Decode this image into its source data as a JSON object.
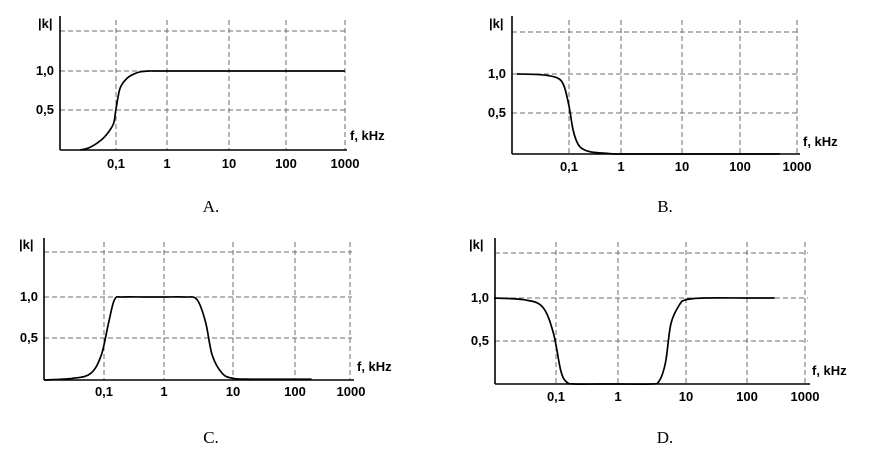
{
  "chart_data": [
    {
      "type": "line",
      "panel_caption": "A.",
      "xlabel": "f, kHz",
      "ylabel": "|k|",
      "x_scale": "log",
      "x_ticks": [
        "0,1",
        "1",
        "10",
        "100",
        "1000"
      ],
      "y_ticks": [
        "0,5",
        "1,0"
      ],
      "xlim": [
        0.01,
        1000
      ],
      "ylim": [
        0,
        1.25
      ],
      "grid": true,
      "series": [
        {
          "x": [
            0.02,
            0.03,
            0.05,
            0.07,
            0.09,
            0.1,
            0.12,
            0.16,
            0.22,
            0.3,
            0.45,
            0.6,
            1,
            10,
            100,
            1000
          ],
          "y": [
            0.0,
            0.03,
            0.12,
            0.22,
            0.34,
            0.52,
            0.78,
            0.9,
            0.96,
            0.99,
            1.0,
            1.0,
            1.0,
            1.0,
            1.0,
            1.0
          ]
        }
      ]
    },
    {
      "type": "line",
      "panel_caption": "B.",
      "xlabel": "f, kHz",
      "ylabel": "|k|",
      "x_scale": "log",
      "x_ticks": [
        "0,1",
        "1",
        "10",
        "100",
        "1000"
      ],
      "y_ticks": [
        "0,5",
        "1,0"
      ],
      "xlim": [
        0.01,
        1000
      ],
      "ylim": [
        0,
        1.25
      ],
      "grid": true,
      "series": [
        {
          "x": [
            0.01,
            0.03,
            0.06,
            0.08,
            0.1,
            0.12,
            0.15,
            0.2,
            0.3,
            0.5,
            1,
            10,
            100,
            500
          ],
          "y": [
            1.0,
            0.99,
            0.95,
            0.85,
            0.6,
            0.3,
            0.12,
            0.05,
            0.02,
            0.01,
            0.0,
            0.0,
            0.0,
            0.0
          ]
        }
      ]
    },
    {
      "type": "line",
      "panel_caption": "C.",
      "xlabel": "f, kHz",
      "ylabel": "|k|",
      "x_scale": "log",
      "x_ticks": [
        "0,1",
        "1",
        "10",
        "100",
        "1000"
      ],
      "y_ticks": [
        "0,5",
        "1,0"
      ],
      "xlim": [
        0.01,
        1000
      ],
      "ylim": [
        0,
        1.25
      ],
      "grid": true,
      "series": [
        {
          "x": [
            0.01,
            0.03,
            0.06,
            0.09,
            0.12,
            0.15,
            0.2,
            0.5,
            1,
            2,
            3,
            4,
            5,
            7,
            10,
            20,
            100,
            200
          ],
          "y": [
            0.0,
            0.02,
            0.08,
            0.3,
            0.7,
            0.97,
            1.0,
            1.0,
            1.0,
            1.0,
            0.97,
            0.7,
            0.3,
            0.08,
            0.02,
            0.01,
            0.01,
            0.01
          ]
        }
      ]
    },
    {
      "type": "line",
      "panel_caption": "D.",
      "xlabel": "f, kHz",
      "ylabel": "|k|",
      "x_scale": "log",
      "x_ticks": [
        "0,1",
        "1",
        "10",
        "100",
        "1000"
      ],
      "y_ticks": [
        "0,5",
        "1,0"
      ],
      "xlim": [
        0.01,
        1000
      ],
      "ylim": [
        0,
        1.25
      ],
      "grid": true,
      "series": [
        {
          "x": [
            0.01,
            0.03,
            0.06,
            0.09,
            0.12,
            0.15,
            0.2,
            0.5,
            1,
            3,
            4,
            5,
            6,
            8,
            10,
            20,
            100,
            300
          ],
          "y": [
            1.0,
            0.98,
            0.9,
            0.6,
            0.15,
            0.02,
            0.0,
            0.0,
            0.0,
            0.0,
            0.03,
            0.25,
            0.7,
            0.92,
            0.98,
            1.0,
            1.0,
            1.0
          ]
        }
      ]
    }
  ]
}
